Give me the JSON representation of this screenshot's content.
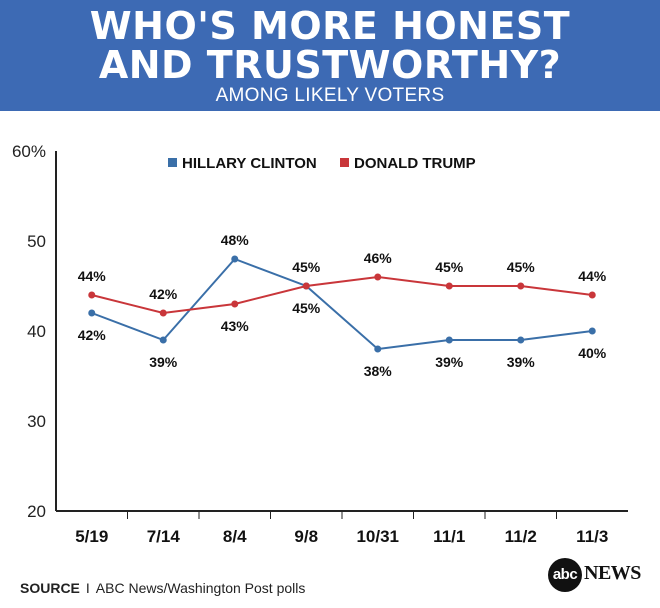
{
  "header": {
    "title_line1": "WHO'S MORE HONEST",
    "title_line2": "AND TRUSTWORTHY?",
    "subtitle": "AMONG LIKELY VOTERS",
    "background_color": "#3d6ab4"
  },
  "chart_data": {
    "type": "line",
    "categories": [
      "5/19",
      "7/14",
      "8/4",
      "9/8",
      "10/31",
      "11/1",
      "11/2",
      "11/3"
    ],
    "ylim": [
      20,
      60
    ],
    "yticks": [
      "60%",
      "50",
      "40",
      "30",
      "20"
    ],
    "ytick_values": [
      60,
      50,
      40,
      30,
      20
    ],
    "legend_position": "top",
    "grid": false,
    "series": [
      {
        "name": "HILLARY CLINTON",
        "color": "#3a6fa8",
        "values": [
          42,
          39,
          48,
          45,
          38,
          39,
          39,
          40
        ],
        "labels": [
          "42%",
          "39%",
          "48%",
          "45%",
          "38%",
          "39%",
          "39%",
          "40%"
        ],
        "label_positions": [
          "below",
          "below",
          "above",
          "below",
          "below",
          "below",
          "below",
          "below"
        ]
      },
      {
        "name": "DONALD TRUMP",
        "color": "#c9363a",
        "values": [
          44,
          42,
          43,
          45,
          46,
          45,
          45,
          44
        ],
        "labels": [
          "44%",
          "42%",
          "43%",
          "45%",
          "46%",
          "45%",
          "45%",
          "44%"
        ],
        "label_positions": [
          "above",
          "above",
          "below",
          "above",
          "above",
          "above",
          "above",
          "above"
        ]
      }
    ]
  },
  "footer": {
    "source_label": "SOURCE",
    "separator": "I",
    "source_text": "ABC News/Washington Post polls"
  },
  "logo": {
    "mark": "abc",
    "text": "NEWS"
  }
}
